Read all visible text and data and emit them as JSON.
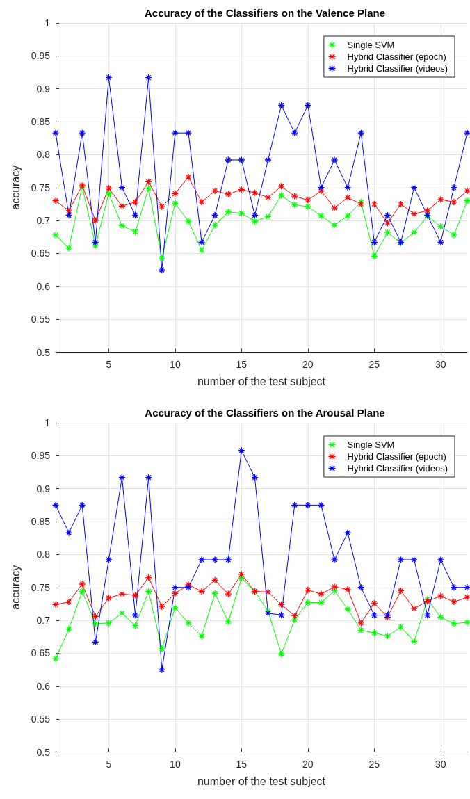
{
  "chart_data": [
    {
      "type": "line",
      "title": "Accuracy of the Classifiers on the Valence Plane",
      "xlabel": "number of the test subject",
      "ylabel": "accuracy",
      "x": [
        1,
        2,
        3,
        4,
        5,
        6,
        7,
        8,
        9,
        10,
        11,
        12,
        13,
        14,
        15,
        16,
        17,
        18,
        19,
        20,
        21,
        22,
        23,
        24,
        25,
        26,
        27,
        28,
        29,
        30,
        31,
        32
      ],
      "series": [
        {
          "name": "Single SVM",
          "color": "#00ff00",
          "values": [
            0.678,
            0.658,
            0.752,
            0.662,
            0.741,
            0.692,
            0.683,
            0.749,
            0.643,
            0.726,
            0.699,
            0.655,
            0.693,
            0.713,
            0.711,
            0.699,
            0.706,
            0.738,
            0.724,
            0.721,
            0.707,
            0.693,
            0.707,
            0.728,
            0.646,
            0.682,
            0.666,
            0.682,
            0.707,
            0.691,
            0.678,
            0.73
          ]
        },
        {
          "name": "Hybrid Classifier (epoch)",
          "color": "#ff0000",
          "values": [
            0.73,
            0.715,
            0.753,
            0.7,
            0.749,
            0.722,
            0.728,
            0.759,
            0.721,
            0.741,
            0.766,
            0.728,
            0.745,
            0.74,
            0.747,
            0.742,
            0.735,
            0.752,
            0.737,
            0.731,
            0.745,
            0.719,
            0.735,
            0.725,
            0.725,
            0.696,
            0.725,
            0.71,
            0.715,
            0.732,
            0.728,
            0.745
          ]
        },
        {
          "name": "Hybrid Classifier (videos)",
          "color": "#0000ff",
          "values": [
            0.833,
            0.708,
            0.833,
            0.667,
            0.917,
            0.75,
            0.708,
            0.917,
            0.625,
            0.833,
            0.833,
            0.667,
            0.708,
            0.792,
            0.792,
            0.708,
            0.792,
            0.875,
            0.833,
            0.875,
            0.75,
            0.792,
            0.75,
            0.833,
            0.667,
            0.708,
            0.667,
            0.75,
            0.708,
            0.667,
            0.75,
            0.833
          ]
        }
      ],
      "xlim": [
        1,
        32
      ],
      "xticks": [
        5,
        10,
        15,
        20,
        25,
        30
      ],
      "ylim": [
        0.5,
        1
      ],
      "yticks": [
        0.5,
        0.55,
        0.6,
        0.65,
        0.7,
        0.75,
        0.8,
        0.85,
        0.9,
        0.95,
        1
      ],
      "grid": true,
      "legend": "top right",
      "marker": "cross",
      "line_style": "solid"
    },
    {
      "type": "line",
      "title": "Accuracy of the Classifiers on the Arousal Plane",
      "xlabel": "number of the test subject",
      "ylabel": "accuracy",
      "x": [
        1,
        2,
        3,
        4,
        5,
        6,
        7,
        8,
        9,
        10,
        11,
        12,
        13,
        14,
        15,
        16,
        17,
        18,
        19,
        20,
        21,
        22,
        23,
        24,
        25,
        26,
        27,
        28,
        29,
        30,
        31,
        32
      ],
      "series": [
        {
          "name": "Single SVM",
          "color": "#00ff00",
          "values": [
            0.642,
            0.687,
            0.744,
            0.695,
            0.696,
            0.711,
            0.692,
            0.744,
            0.657,
            0.719,
            0.696,
            0.676,
            0.741,
            0.698,
            0.764,
            0.744,
            0.714,
            0.649,
            0.701,
            0.727,
            0.727,
            0.745,
            0.717,
            0.685,
            0.681,
            0.676,
            0.69,
            0.668,
            0.732,
            0.705,
            0.695,
            0.697
          ]
        },
        {
          "name": "Hybrid Classifier (epoch)",
          "color": "#ff0000",
          "values": [
            0.724,
            0.728,
            0.755,
            0.706,
            0.734,
            0.74,
            0.738,
            0.765,
            0.721,
            0.741,
            0.754,
            0.744,
            0.761,
            0.74,
            0.77,
            0.744,
            0.743,
            0.724,
            0.707,
            0.746,
            0.74,
            0.751,
            0.747,
            0.696,
            0.726,
            0.705,
            0.745,
            0.718,
            0.729,
            0.737,
            0.728,
            0.735
          ]
        },
        {
          "name": "Hybrid Classifier (videos)",
          "color": "#0000ff",
          "values": [
            0.875,
            0.833,
            0.875,
            0.667,
            0.792,
            0.917,
            0.708,
            0.917,
            0.625,
            0.75,
            0.75,
            0.792,
            0.792,
            0.792,
            0.958,
            0.917,
            0.711,
            0.708,
            0.875,
            0.875,
            0.875,
            0.792,
            0.833,
            0.75,
            0.708,
            0.708,
            0.792,
            0.792,
            0.708,
            0.792,
            0.75,
            0.75
          ]
        }
      ],
      "xlim": [
        1,
        32
      ],
      "xticks": [
        5,
        10,
        15,
        20,
        25,
        30
      ],
      "ylim": [
        0.5,
        1
      ],
      "yticks": [
        0.5,
        0.55,
        0.6,
        0.65,
        0.7,
        0.75,
        0.8,
        0.85,
        0.9,
        0.95,
        1
      ],
      "grid": true,
      "legend": "top right",
      "marker": "cross",
      "line_style": "solid"
    }
  ]
}
